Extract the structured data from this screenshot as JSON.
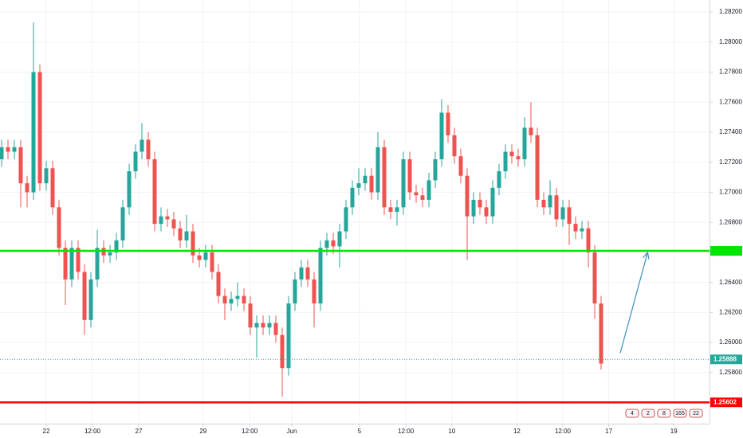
{
  "chart_data": {
    "type": "candlestick",
    "up_color": "#26a69a",
    "down_color": "#ef5350",
    "x": [
      0,
      1,
      2,
      3,
      4,
      5,
      6,
      7,
      8,
      9,
      10,
      11,
      12,
      13,
      14,
      15,
      16,
      17,
      18,
      19,
      20,
      21,
      22,
      23,
      24,
      25,
      26,
      27,
      28,
      29,
      30,
      31,
      32,
      33,
      34,
      35,
      36,
      37,
      38,
      39,
      40,
      41,
      42,
      43,
      44,
      45,
      46,
      47,
      48,
      49,
      50,
      51,
      52,
      53,
      54,
      55,
      56,
      57,
      58,
      59,
      60,
      61,
      62,
      63,
      64,
      65,
      66,
      67,
      68,
      69,
      70,
      71,
      72,
      73,
      74,
      75,
      76,
      77,
      78,
      79,
      80,
      81,
      82,
      83,
      84,
      85,
      86,
      87,
      88,
      89,
      90,
      91,
      92,
      93,
      94
    ],
    "open": [
      1.2722,
      1.273,
      1.2727,
      1.273,
      1.2706,
      1.27,
      1.278,
      1.2706,
      1.2716,
      1.269,
      1.2663,
      1.2642,
      1.2663,
      1.2647,
      1.2615,
      1.2642,
      1.2663,
      1.2658,
      1.266,
      1.2668,
      1.269,
      1.2714,
      1.2727,
      1.2735,
      1.2722,
      1.2679,
      1.2684,
      1.2682,
      1.2676,
      1.2668,
      1.2674,
      1.2658,
      1.2655,
      1.266,
      1.2647,
      1.2631,
      1.2626,
      1.2629,
      1.2631,
      1.2626,
      1.261,
      1.2613,
      1.261,
      1.2613,
      1.2605,
      1.2583,
      1.2626,
      1.2642,
      1.265,
      1.2642,
      1.2626,
      1.2663,
      1.2668,
      1.2664,
      1.2674,
      1.269,
      1.2703,
      1.2706,
      1.2711,
      1.27,
      1.273,
      1.269,
      1.2687,
      1.269,
      1.2722,
      1.27,
      1.2698,
      1.2695,
      1.2708,
      1.2722,
      1.2753,
      1.2738,
      1.2724,
      1.2711,
      1.2684,
      1.2695,
      1.269,
      1.2684,
      1.2703,
      1.2714,
      1.2727,
      1.2724,
      1.2722,
      1.2743,
      1.2738,
      1.2695,
      1.269,
      1.2698,
      1.2682,
      1.269,
      1.2679,
      1.2674,
      1.2676,
      1.266,
      1.2626
    ],
    "high": [
      1.2735,
      1.2735,
      1.2735,
      1.2735,
      1.2711,
      1.2813,
      1.2785,
      1.2721,
      1.2721,
      1.2695,
      1.2668,
      1.2668,
      1.2668,
      1.2652,
      1.2647,
      1.2675,
      1.2668,
      1.2665,
      1.2673,
      1.2695,
      1.2719,
      1.2732,
      1.2746,
      1.274,
      1.2727,
      1.269,
      1.2689,
      1.2687,
      1.2681,
      1.2685,
      1.2679,
      1.2663,
      1.2665,
      1.2665,
      1.2652,
      1.2636,
      1.2634,
      1.264,
      1.2636,
      1.2631,
      1.2618,
      1.2618,
      1.2618,
      1.2618,
      1.261,
      1.2631,
      1.2647,
      1.2655,
      1.2655,
      1.2647,
      1.2668,
      1.2673,
      1.2673,
      1.2679,
      1.2695,
      1.2708,
      1.2716,
      1.2716,
      1.2716,
      1.274,
      1.2735,
      1.2695,
      1.2695,
      1.2727,
      1.2727,
      1.2705,
      1.2703,
      1.2713,
      1.2727,
      1.2762,
      1.2758,
      1.2743,
      1.2729,
      1.2716,
      1.27,
      1.27,
      1.2695,
      1.2708,
      1.2719,
      1.2732,
      1.2732,
      1.2729,
      1.275,
      1.276,
      1.2743,
      1.27,
      1.2708,
      1.2703,
      1.2695,
      1.2695,
      1.2684,
      1.2681,
      1.2681,
      1.2665,
      1.2631
    ],
    "low": [
      1.2717,
      1.2722,
      1.2722,
      1.269,
      1.269,
      1.2695,
      1.2701,
      1.2701,
      1.2685,
      1.2658,
      1.2625,
      1.2637,
      1.2642,
      1.2605,
      1.261,
      1.2637,
      1.2653,
      1.2653,
      1.2655,
      1.2663,
      1.2685,
      1.2709,
      1.2722,
      1.2717,
      1.2674,
      1.2674,
      1.2677,
      1.2671,
      1.2663,
      1.2663,
      1.2653,
      1.265,
      1.265,
      1.2642,
      1.2626,
      1.2615,
      1.2621,
      1.2624,
      1.2621,
      1.2605,
      1.259,
      1.2605,
      1.2605,
      1.26,
      1.2564,
      1.2578,
      1.2621,
      1.2637,
      1.2637,
      1.261,
      1.2621,
      1.2658,
      1.2659,
      1.265,
      1.2669,
      1.2685,
      1.2698,
      1.2701,
      1.2695,
      1.2695,
      1.2685,
      1.2682,
      1.2678,
      1.2685,
      1.2695,
      1.2693,
      1.269,
      1.269,
      1.2703,
      1.2717,
      1.2733,
      1.2719,
      1.2706,
      1.2655,
      1.2679,
      1.2685,
      1.2679,
      1.2679,
      1.2698,
      1.2709,
      1.2719,
      1.2717,
      1.2717,
      1.2733,
      1.269,
      1.2685,
      1.2685,
      1.2677,
      1.2677,
      1.2665,
      1.2669,
      1.2669,
      1.265,
      1.2616,
      1.2582
    ],
    "close": [
      1.273,
      1.2727,
      1.273,
      1.2706,
      1.27,
      1.278,
      1.2706,
      1.2716,
      1.269,
      1.2663,
      1.2642,
      1.2663,
      1.2647,
      1.2615,
      1.2642,
      1.2663,
      1.2658,
      1.266,
      1.2668,
      1.269,
      1.2714,
      1.2727,
      1.2735,
      1.2722,
      1.2679,
      1.2684,
      1.2682,
      1.2676,
      1.2668,
      1.2674,
      1.2658,
      1.2655,
      1.266,
      1.2647,
      1.2631,
      1.2626,
      1.2629,
      1.2631,
      1.2626,
      1.261,
      1.2613,
      1.261,
      1.2613,
      1.2605,
      1.2583,
      1.2626,
      1.2642,
      1.265,
      1.2642,
      1.2626,
      1.2663,
      1.2668,
      1.2664,
      1.2674,
      1.269,
      1.2703,
      1.2706,
      1.2711,
      1.27,
      1.273,
      1.269,
      1.2687,
      1.269,
      1.2722,
      1.27,
      1.2698,
      1.2695,
      1.2708,
      1.2722,
      1.2753,
      1.2738,
      1.2724,
      1.2711,
      1.2684,
      1.2695,
      1.269,
      1.2684,
      1.2703,
      1.2714,
      1.2727,
      1.2724,
      1.2722,
      1.2743,
      1.2738,
      1.2695,
      1.269,
      1.2698,
      1.2682,
      1.269,
      1.2679,
      1.2674,
      1.2676,
      1.266,
      1.2626,
      1.2586
    ],
    "xlim": [
      -0.25,
      111
    ],
    "xticks": [
      {
        "value": 7,
        "label": "22"
      },
      {
        "value": 14.25,
        "label": "12:00"
      },
      {
        "value": 21.5,
        "label": "27"
      },
      {
        "value": 31.6,
        "label": "29"
      },
      {
        "value": 38.9,
        "label": "12:00"
      },
      {
        "value": 45.5,
        "label": "Jun"
      },
      {
        "value": 56.1,
        "label": "5"
      },
      {
        "value": 63.4,
        "label": "12:00"
      },
      {
        "value": 70.6,
        "label": "10"
      },
      {
        "value": 80.8,
        "label": "12"
      },
      {
        "value": 88,
        "label": "12:00"
      },
      {
        "value": 95.2,
        "label": "17"
      },
      {
        "value": 105.4,
        "label": "19"
      }
    ],
    "ylim": [
      1.2546,
      1.2828
    ],
    "yticks": [
      {
        "value": 1.258,
        "label": "1.25800"
      },
      {
        "value": 1.26,
        "label": "1.26000"
      },
      {
        "value": 1.262,
        "label": "1.26200"
      },
      {
        "value": 1.264,
        "label": "1.26400"
      },
      {
        "value": 1.268,
        "label": "1.26800"
      },
      {
        "value": 1.27,
        "label": "1.27000"
      },
      {
        "value": 1.272,
        "label": "1.27200"
      },
      {
        "value": 1.274,
        "label": "1.27400"
      },
      {
        "value": 1.276,
        "label": "1.27600"
      },
      {
        "value": 1.278,
        "label": "1.27800"
      },
      {
        "value": 1.28,
        "label": "1.28000"
      },
      {
        "value": 1.282,
        "label": "1.28200"
      }
    ],
    "grid": true,
    "levels": [
      {
        "value": 1.2661,
        "color": "#00e600"
      },
      {
        "value": 1.25602,
        "label": "1.25602",
        "color": "#ff0000"
      },
      {
        "value": 1.25888,
        "label": "1.25888",
        "color": "#26a69a"
      }
    ],
    "arrow": {
      "x": [
        97,
        101.3
      ],
      "y": [
        1.2593,
        1.266
      ],
      "color": "#3d8fbf"
    },
    "events": [
      "4",
      "2",
      "8",
      "165",
      "22"
    ]
  }
}
